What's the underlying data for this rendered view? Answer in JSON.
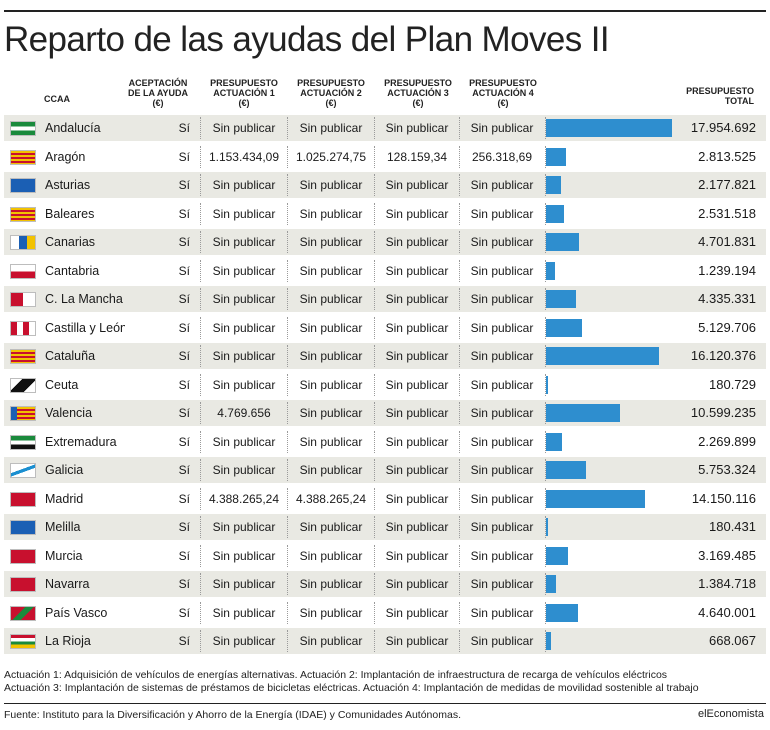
{
  "title": "Reparto de las ayudas del Plan Moves II",
  "headers": {
    "ccaa": "CCAA",
    "aceptacion": "ACEPTACIÓN\nDE LA AYUDA\n(€)",
    "act1": "PRESUPUESTO\nACTUACIÓN 1\n(€)",
    "act2": "PRESUPUESTO\nACTUACIÓN 2\n(€)",
    "act3": "PRESUPUESTO\nACTUACIÓN 3\n(€)",
    "act4": "PRESUPUESTO\nACTUACIÓN 4\n(€)",
    "total": "PRESUPUESTO\nTOTAL"
  },
  "chart_data": {
    "type": "bar",
    "orientation": "horizontal",
    "title": "Reparto de las ayudas del Plan Moves II",
    "value_column": "PRESUPUESTO TOTAL",
    "grid": false,
    "rows": [
      {
        "ccaa": "Andalucía",
        "aceptacion": "Sí",
        "act1": "Sin publicar",
        "act2": "Sin publicar",
        "act3": "Sin publicar",
        "act4": "Sin publicar",
        "total": 17954692,
        "total_label": "17.954.692"
      },
      {
        "ccaa": "Aragón",
        "aceptacion": "Sí",
        "act1": "1.153.434,09",
        "act2": "1.025.274,75",
        "act3": "128.159,34",
        "act4": "256.318,69",
        "total": 2813525,
        "total_label": "2.813.525"
      },
      {
        "ccaa": "Asturias",
        "aceptacion": "Sí",
        "act1": "Sin publicar",
        "act2": "Sin publicar",
        "act3": "Sin publicar",
        "act4": "Sin publicar",
        "total": 2177821,
        "total_label": "2.177.821"
      },
      {
        "ccaa": "Baleares",
        "aceptacion": "Sí",
        "act1": "Sin publicar",
        "act2": "Sin publicar",
        "act3": "Sin publicar",
        "act4": "Sin publicar",
        "total": 2531518,
        "total_label": "2.531.518"
      },
      {
        "ccaa": "Canarias",
        "aceptacion": "Sí",
        "act1": "Sin publicar",
        "act2": "Sin publicar",
        "act3": "Sin publicar",
        "act4": "Sin publicar",
        "total": 4701831,
        "total_label": "4.701.831"
      },
      {
        "ccaa": "Cantabria",
        "aceptacion": "Sí",
        "act1": "Sin publicar",
        "act2": "Sin publicar",
        "act3": "Sin publicar",
        "act4": "Sin publicar",
        "total": 1239194,
        "total_label": "1.239.194"
      },
      {
        "ccaa": "C. La Mancha",
        "aceptacion": "Sí",
        "act1": "Sin publicar",
        "act2": "Sin publicar",
        "act3": "Sin publicar",
        "act4": "Sin publicar",
        "total": 4335331,
        "total_label": "4.335.331"
      },
      {
        "ccaa": "Castilla y León",
        "aceptacion": "Sí",
        "act1": "Sin publicar",
        "act2": "Sin publicar",
        "act3": "Sin publicar",
        "act4": "Sin publicar",
        "total": 5129706,
        "total_label": "5.129.706"
      },
      {
        "ccaa": "Cataluña",
        "aceptacion": "Sí",
        "act1": "Sin publicar",
        "act2": "Sin publicar",
        "act3": "Sin publicar",
        "act4": "Sin publicar",
        "total": 16120376,
        "total_label": "16.120.376"
      },
      {
        "ccaa": "Ceuta",
        "aceptacion": "Sí",
        "act1": "Sin publicar",
        "act2": "Sin publicar",
        "act3": "Sin publicar",
        "act4": "Sin publicar",
        "total": 180729,
        "total_label": "180.729"
      },
      {
        "ccaa": "Valencia",
        "aceptacion": "Sí",
        "act1": "4.769.656",
        "act2": "Sin publicar",
        "act3": "Sin publicar",
        "act4": "Sin publicar",
        "total": 10599235,
        "total_label": "10.599.235"
      },
      {
        "ccaa": "Extremadura",
        "aceptacion": "Sí",
        "act1": "Sin publicar",
        "act2": "Sin publicar",
        "act3": "Sin publicar",
        "act4": "Sin publicar",
        "total": 2269899,
        "total_label": "2.269.899"
      },
      {
        "ccaa": "Galicia",
        "aceptacion": "Sí",
        "act1": "Sin publicar",
        "act2": "Sin publicar",
        "act3": "Sin publicar",
        "act4": "Sin publicar",
        "total": 5753324,
        "total_label": "5.753.324"
      },
      {
        "ccaa": "Madrid",
        "aceptacion": "Sí",
        "act1": "4.388.265,24",
        "act2": "4.388.265,24",
        "act3": "Sin publicar",
        "act4": "Sin publicar",
        "total": 14150116,
        "total_label": "14.150.116"
      },
      {
        "ccaa": "Melilla",
        "aceptacion": "Sí",
        "act1": "Sin publicar",
        "act2": "Sin publicar",
        "act3": "Sin publicar",
        "act4": "Sin publicar",
        "total": 180431,
        "total_label": "180.431"
      },
      {
        "ccaa": "Murcia",
        "aceptacion": "Sí",
        "act1": "Sin publicar",
        "act2": "Sin publicar",
        "act3": "Sin publicar",
        "act4": "Sin publicar",
        "total": 3169485,
        "total_label": "3.169.485"
      },
      {
        "ccaa": "Navarra",
        "aceptacion": "Sí",
        "act1": "Sin publicar",
        "act2": "Sin publicar",
        "act3": "Sin publicar",
        "act4": "Sin publicar",
        "total": 1384718,
        "total_label": "1.384.718"
      },
      {
        "ccaa": "País Vasco",
        "aceptacion": "Sí",
        "act1": "Sin publicar",
        "act2": "Sin publicar",
        "act3": "Sin publicar",
        "act4": "Sin publicar",
        "total": 4640001,
        "total_label": "4.640.001"
      },
      {
        "ccaa": "La Rioja",
        "aceptacion": "Sí",
        "act1": "Sin publicar",
        "act2": "Sin publicar",
        "act3": "Sin publicar",
        "act4": "Sin publicar",
        "total": 668067,
        "total_label": "668.067"
      }
    ],
    "bar_max": 18000000
  },
  "colors": {
    "bar": "#2e8ecf",
    "shade": "#e9e9e3"
  },
  "flags": [
    "andalucia-flag-icon",
    "aragon-flag-icon",
    "asturias-flag-icon",
    "baleares-flag-icon",
    "canarias-flag-icon",
    "cantabria-flag-icon",
    "castilla-la-mancha-flag-icon",
    "castilla-y-leon-flag-icon",
    "cataluna-flag-icon",
    "ceuta-flag-icon",
    "valencia-flag-icon",
    "extremadura-flag-icon",
    "galicia-flag-icon",
    "madrid-flag-icon",
    "melilla-flag-icon",
    "murcia-flag-icon",
    "navarra-flag-icon",
    "pais-vasco-flag-icon",
    "la-rioja-flag-icon"
  ],
  "notes": {
    "line1": "Actuación 1: Adquisición de vehículos de energías alternativas. Actuación 2: Implantación de infraestructura de recarga de vehículos eléctricos",
    "line2": "Actuación 3: Implantación de sistemas de préstamos de bicicletas eléctricas. Actuación 4: Implantación de medidas de movilidad sostenible al trabajo"
  },
  "source": "Fuente: Instituto para la Diversificación y Ahorro de la Energía (IDAE) y Comunidades Autónomas.",
  "brand": "elEconomista"
}
